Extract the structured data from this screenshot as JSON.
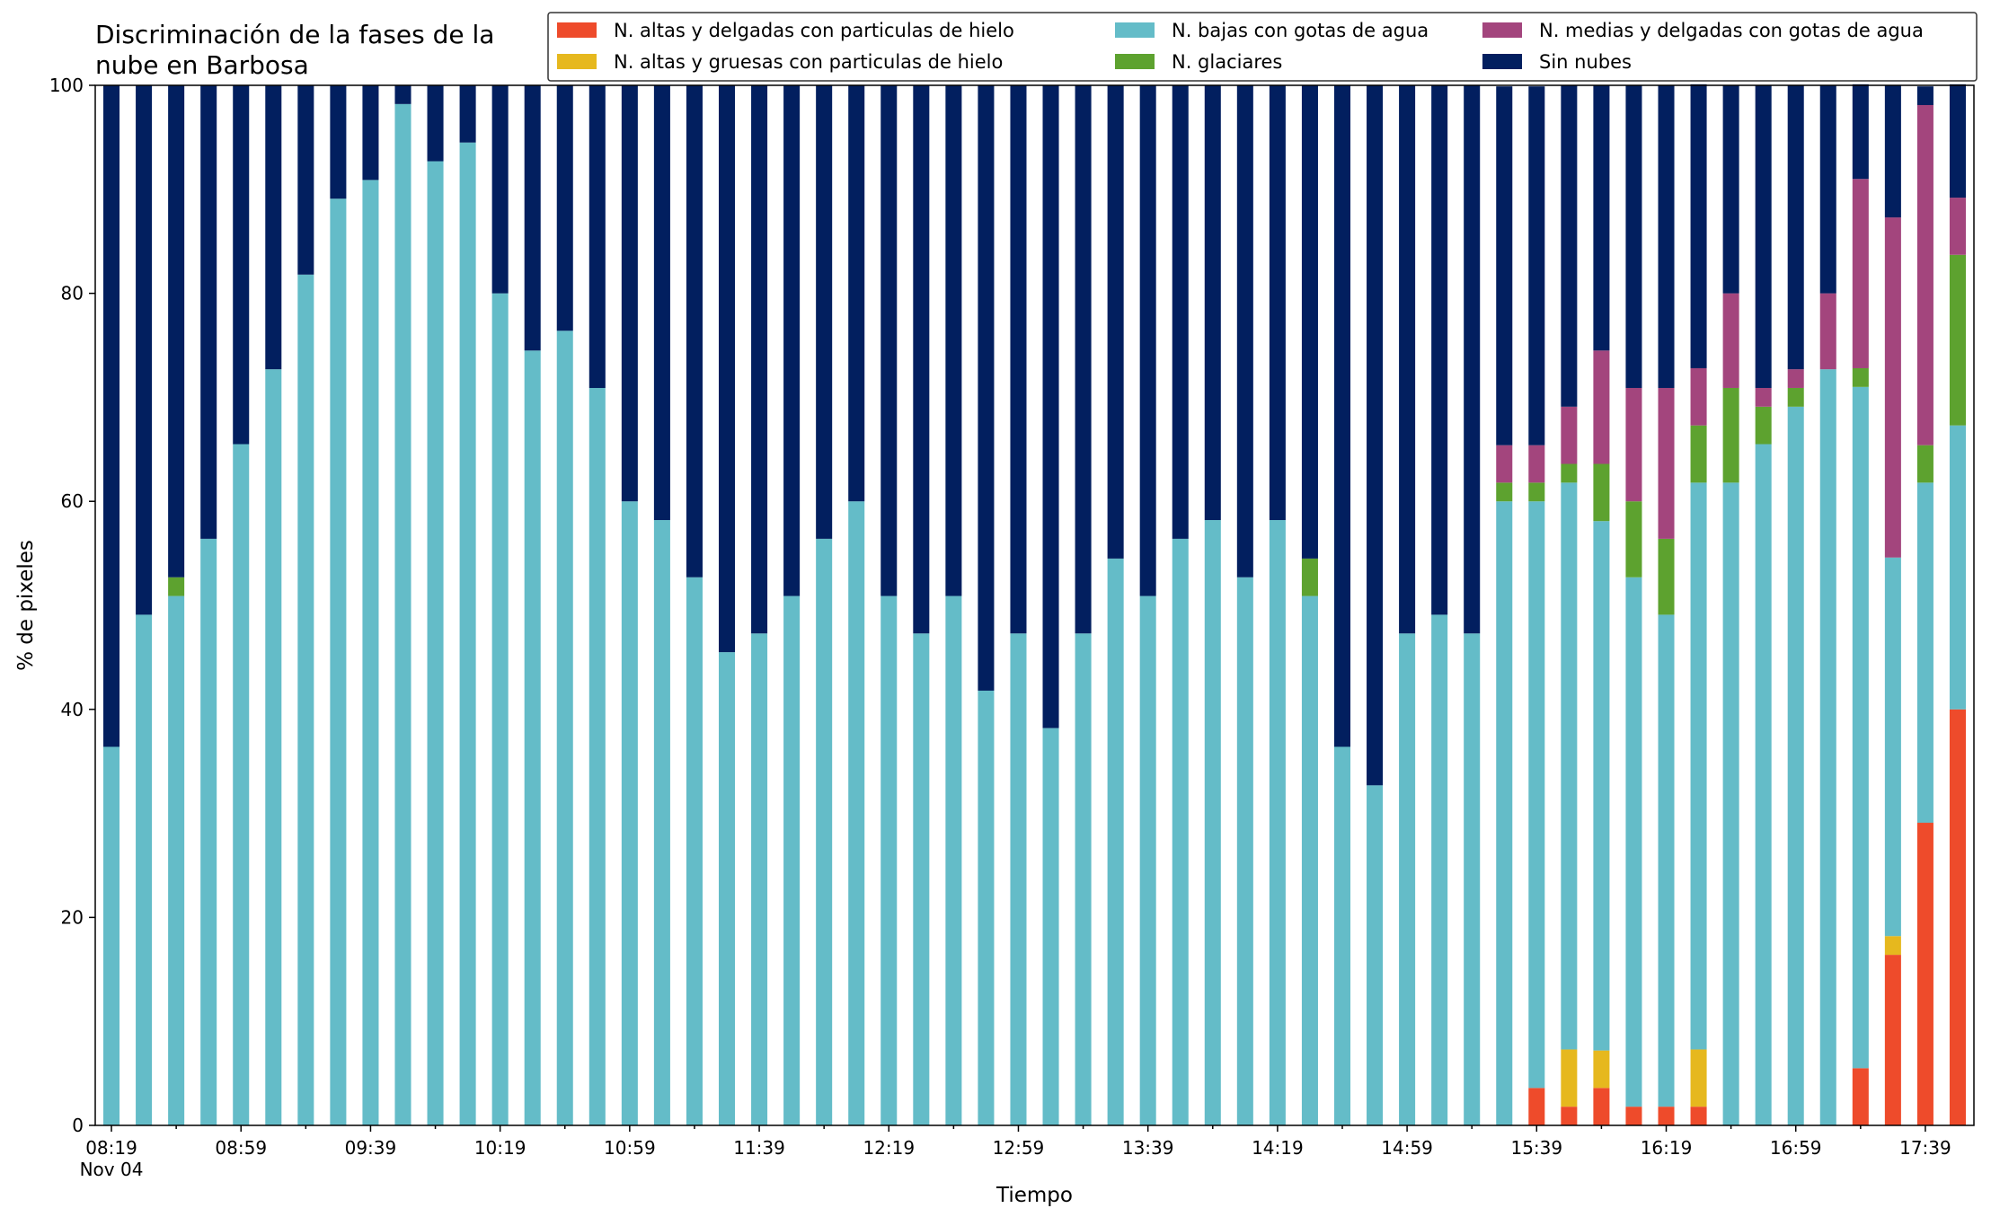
{
  "chart_data": {
    "type": "bar",
    "stacked": true,
    "title_line1": "Discriminación de la fases de la",
    "title_line2": "nube en Barbosa",
    "xlabel": "Tiempo",
    "ylabel": "% de pixeles",
    "ylim": [
      0,
      100
    ],
    "yticks": [
      0,
      20,
      40,
      60,
      80,
      100
    ],
    "x_tick_labels": [
      "08:19",
      "08:59",
      "09:39",
      "10:19",
      "10:59",
      "11:39",
      "12:19",
      "12:59",
      "13:39",
      "14:19",
      "14:59",
      "15:39",
      "16:19",
      "16:59",
      "17:39"
    ],
    "x_tick_sublabel": "Nov 04",
    "legend_position": "top-right",
    "legend_layout_columns": 3,
    "series": [
      {
        "name": "N. altas y delgadas con particulas de hielo",
        "color": "#ee4b2b",
        "values": [
          0,
          0,
          0,
          0,
          0,
          0,
          0,
          0,
          0,
          0,
          0,
          0,
          0,
          0,
          0,
          0,
          0,
          0,
          0,
          0,
          0,
          0,
          0,
          0,
          0,
          0,
          0,
          0,
          0,
          0,
          0,
          0,
          0,
          0,
          0,
          0,
          0,
          0,
          0,
          0,
          0,
          0,
          0,
          0,
          3.6,
          1.8,
          3.6,
          1.8,
          1.8,
          1.8,
          0,
          0,
          0,
          0,
          5.5,
          16.4,
          29.1,
          40.0
        ]
      },
      {
        "name": "N. altas y gruesas con particulas de hielo",
        "color": "#e6b81e",
        "values": [
          0,
          0,
          0,
          0,
          0,
          0,
          0,
          0,
          0,
          0,
          0,
          0,
          0,
          0,
          0,
          0,
          0,
          0,
          0,
          0,
          0,
          0,
          0,
          0,
          0,
          0,
          0,
          0,
          0,
          0,
          0,
          0,
          0,
          0,
          0,
          0,
          0,
          0,
          0,
          0,
          0,
          0,
          0,
          0,
          0,
          5.5,
          3.6,
          0,
          0,
          5.5,
          0,
          0,
          0,
          0,
          0,
          1.8,
          0,
          0
        ]
      },
      {
        "name": "N. bajas con gotas de agua",
        "color": "#64bcc8",
        "values": [
          36.4,
          49.1,
          50.9,
          56.4,
          65.5,
          72.7,
          81.8,
          89.1,
          90.9,
          98.2,
          92.7,
          94.5,
          80.0,
          74.5,
          76.4,
          70.9,
          60.0,
          58.2,
          52.7,
          45.5,
          47.3,
          50.9,
          56.4,
          60.0,
          50.9,
          47.3,
          50.9,
          41.8,
          47.3,
          38.2,
          47.3,
          54.5,
          50.9,
          56.4,
          58.2,
          52.7,
          58.2,
          50.9,
          36.4,
          32.7,
          47.3,
          49.1,
          47.3,
          60.0,
          56.4,
          54.5,
          50.9,
          50.9,
          47.3,
          54.5,
          61.8,
          65.5,
          69.1,
          72.7,
          65.5,
          36.4,
          32.7,
          27.3
        ]
      },
      {
        "name": "N. glaciares",
        "color": "#5da22f",
        "values": [
          0,
          0,
          1.8,
          0,
          0,
          0,
          0,
          0,
          0,
          0,
          0,
          0,
          0,
          0,
          0,
          0,
          0,
          0,
          0,
          0,
          0,
          0,
          0,
          0,
          0,
          0,
          0,
          0,
          0,
          0,
          0,
          0,
          0,
          0,
          0,
          0,
          0,
          3.6,
          0,
          0,
          0,
          0,
          0,
          1.8,
          1.8,
          1.8,
          5.5,
          7.3,
          7.3,
          5.5,
          9.1,
          3.6,
          1.8,
          0,
          1.8,
          0,
          3.6,
          16.4
        ]
      },
      {
        "name": "N. medias y delgadas con gotas de agua",
        "color": "#a3457d",
        "values": [
          0,
          0,
          0,
          0,
          0,
          0,
          0,
          0,
          0,
          0,
          0,
          0,
          0,
          0,
          0,
          0,
          0,
          0,
          0,
          0,
          0,
          0,
          0,
          0,
          0,
          0,
          0,
          0,
          0,
          0,
          0,
          0,
          0,
          0,
          0,
          0,
          0,
          0,
          0,
          0,
          0,
          0,
          0,
          3.6,
          3.6,
          5.5,
          10.9,
          10.9,
          14.5,
          5.5,
          9.1,
          1.8,
          1.8,
          7.3,
          18.2,
          32.7,
          32.7,
          5.5
        ]
      },
      {
        "name": "Sin nubes",
        "color": "#021f5f",
        "values": [
          63.6,
          50.9,
          47.3,
          43.6,
          34.5,
          27.3,
          18.2,
          10.9,
          9.1,
          1.8,
          7.3,
          5.5,
          20.0,
          25.5,
          23.6,
          29.1,
          40.0,
          41.8,
          47.3,
          54.5,
          52.7,
          49.1,
          43.6,
          40.0,
          49.1,
          52.7,
          49.1,
          58.2,
          52.7,
          61.8,
          52.7,
          45.5,
          49.1,
          43.6,
          41.8,
          47.3,
          41.8,
          45.5,
          63.6,
          67.3,
          52.7,
          50.9,
          52.7,
          34.5,
          34.5,
          30.9,
          25.5,
          29.1,
          29.1,
          27.3,
          20.0,
          29.1,
          27.3,
          20.0,
          9.1,
          12.7,
          1.8,
          10.9
        ]
      }
    ]
  }
}
